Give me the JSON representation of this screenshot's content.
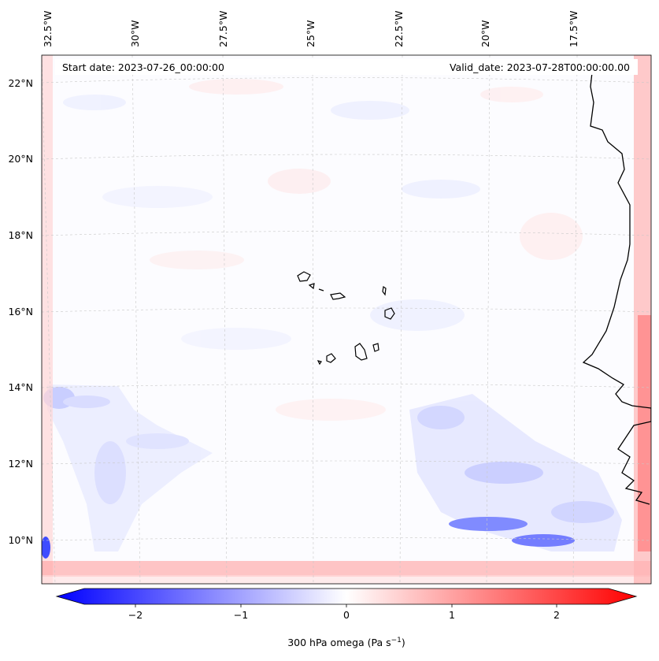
{
  "map": {
    "start_date": "Start date: 2023-07-26_00:00:00",
    "valid_date": "Valid_date: 2023-07-28T00:00:00.00",
    "lon_ticks": [
      "32.5°W",
      "30°W",
      "27.5°W",
      "25°W",
      "22.5°W",
      "20°W",
      "17.5°W"
    ],
    "lat_ticks": [
      "22°N",
      "20°N",
      "18°N",
      "16°N",
      "14°N",
      "12°N",
      "10°N"
    ],
    "islands": [
      "Santo Antão",
      "São Vicente",
      "São Nicolau",
      "Sal",
      "Boa Vista",
      "Maio",
      "Santiago",
      "Fogo",
      "Brava"
    ],
    "coastline": "West Africa"
  },
  "colorbar": {
    "tick_labels": [
      "−2",
      "−1",
      "0",
      "1",
      "2"
    ],
    "label_text": "300 hPa omega (Pa s",
    "label_sup": "−1",
    "label_close": ")",
    "colors": {
      "neg": "#0000ff",
      "zero": "#ffffff",
      "pos": "#ff0000"
    }
  }
}
